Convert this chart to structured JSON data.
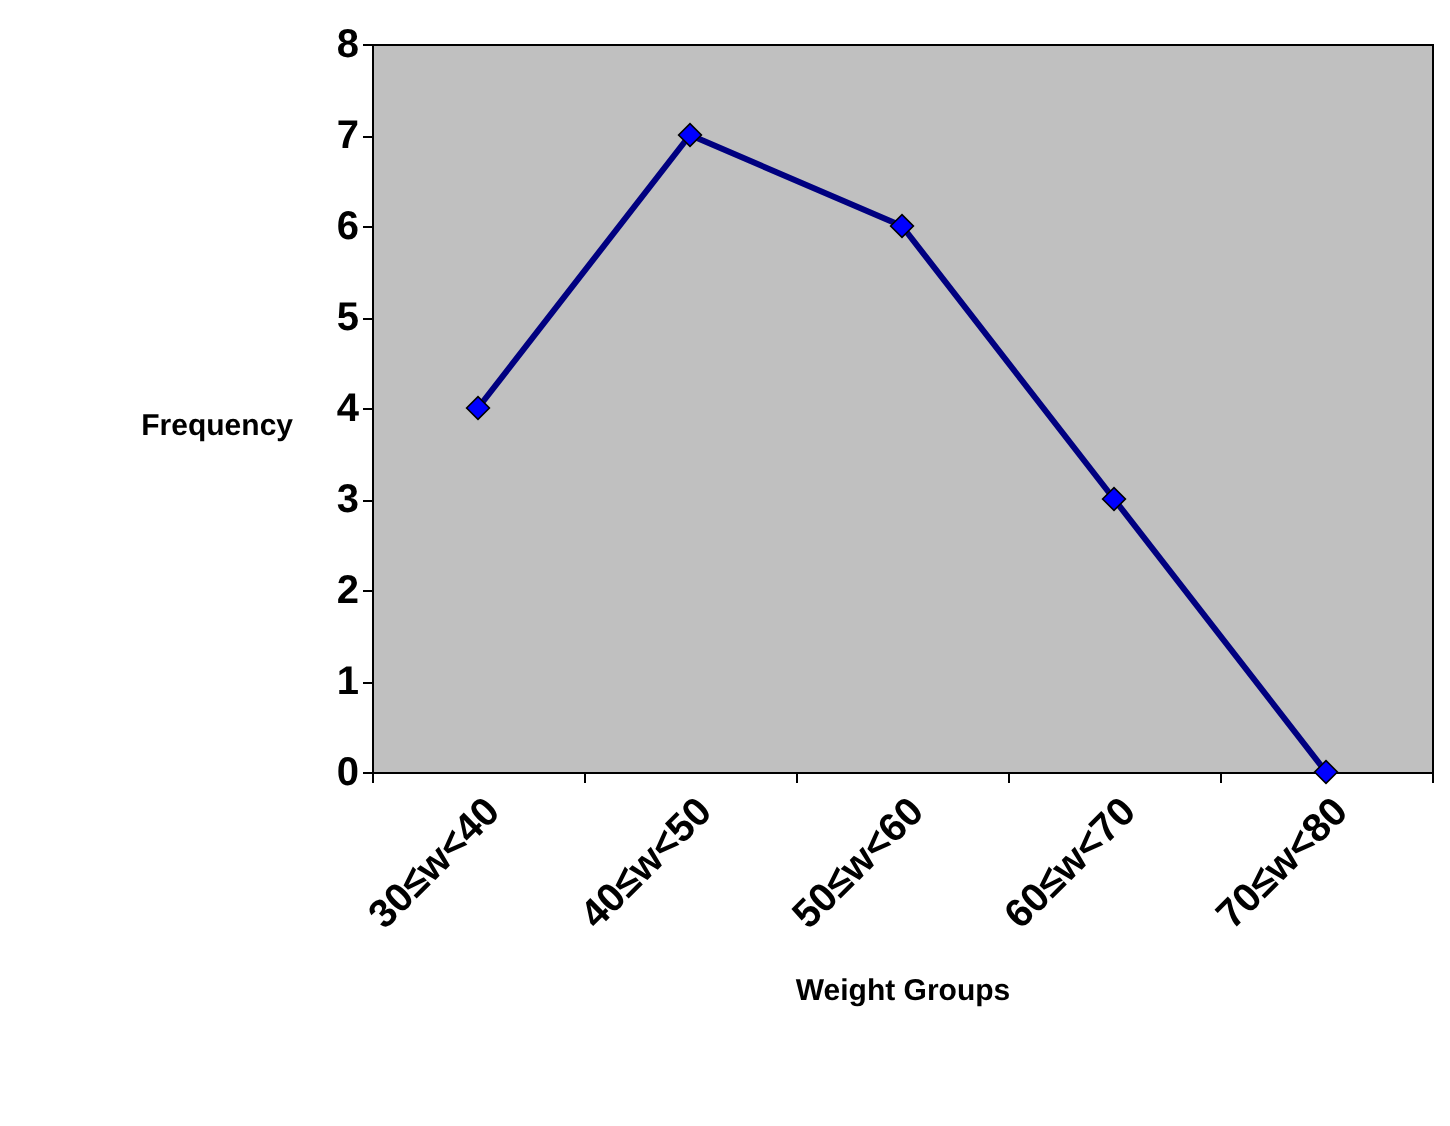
{
  "chart_data": {
    "type": "line",
    "xlabel": "Weight Groups",
    "ylabel": "Frequency",
    "categories": [
      "30≤w<40",
      "40≤w<50",
      "50≤w<60",
      "60≤w<70",
      "70≤w<80"
    ],
    "series": [
      {
        "color": "#000080",
        "values": [
          4,
          7,
          6,
          3,
          0
        ]
      }
    ],
    "ylim": [
      0,
      8
    ],
    "yticks": [
      0,
      1,
      2,
      3,
      4,
      5,
      6,
      7,
      8
    ],
    "grid": false,
    "marker": "diamond",
    "line_style": "solid"
  }
}
